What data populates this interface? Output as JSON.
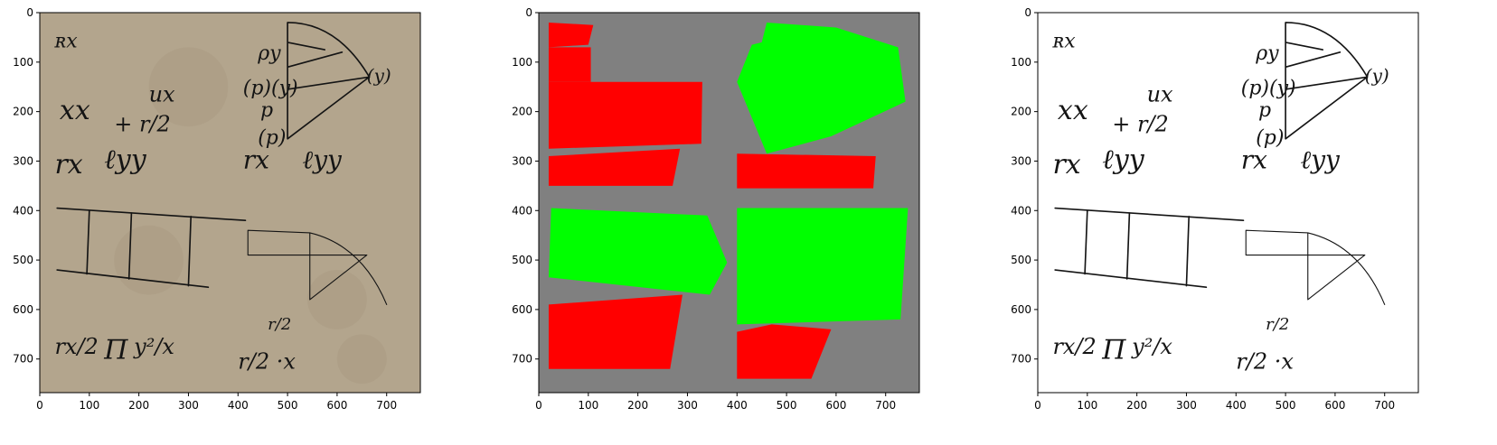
{
  "figure": {
    "panels": [
      {
        "kind": "manuscript-photo",
        "xticks": [
          "0",
          "100",
          "200",
          "300",
          "400",
          "500",
          "600",
          "700"
        ],
        "yticks": [
          "0",
          "100",
          "200",
          "300",
          "400",
          "500",
          "600",
          "700"
        ],
        "colors": {
          "parchment": "#b3a58d",
          "ink": "#1d1d1d"
        }
      },
      {
        "kind": "segmentation-mask",
        "xticks": [
          "0",
          "100",
          "200",
          "300",
          "400",
          "500",
          "600",
          "700"
        ],
        "yticks": [
          "0",
          "100",
          "200",
          "300",
          "400",
          "500",
          "600",
          "700"
        ],
        "colors": {
          "background": "#808080",
          "text_region": "#ff0000",
          "figure_region": "#00ff00"
        }
      },
      {
        "kind": "binarized",
        "xticks": [
          "0",
          "100",
          "200",
          "300",
          "400",
          "500",
          "600",
          "700"
        ],
        "yticks": [
          "0",
          "100",
          "200",
          "300",
          "400",
          "500",
          "600",
          "700"
        ],
        "colors": {
          "background": "#ffffff",
          "ink": "#000000"
        }
      }
    ],
    "manuscript_glyphs": {
      "row1": "ʀx",
      "row2a": "(p)(y)",
      "row2b": "(y)",
      "row3a": "xx",
      "row3b": "ux",
      "row3c": "+ r/2",
      "row4a": "rx",
      "row4b": "ℓyy",
      "row4c": "rx",
      "row4d": "ℓyy",
      "row5": "r/2",
      "row6a": "rx/2",
      "row6b": "Π",
      "row6c": "y²/x",
      "row6d": "r/2 ·x",
      "py": "ρy",
      "p": "p",
      "pp": "(p)"
    }
  }
}
